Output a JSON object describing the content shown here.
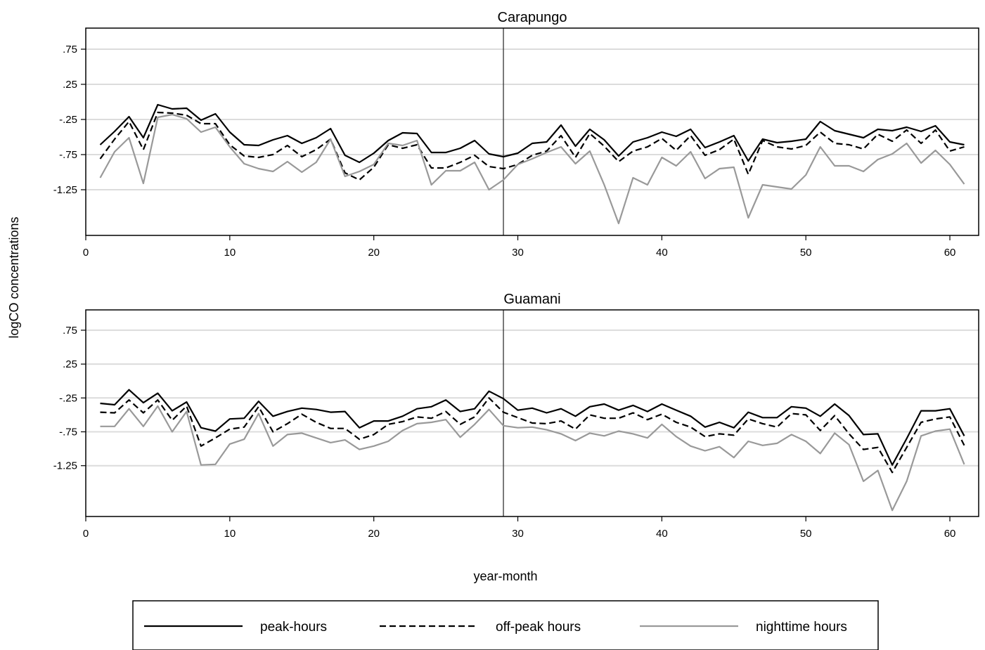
{
  "figure": {
    "ylabel": "logCO concentrations",
    "xlabel": "year-month"
  },
  "legend": {
    "position": "bottom",
    "items": [
      {
        "label": "peak-hours",
        "color": "#000000",
        "dash": "solid"
      },
      {
        "label": "off-peak hours",
        "color": "#000000",
        "dash": "dashed"
      },
      {
        "label": "nighttime hours",
        "color": "#999999",
        "dash": "solid"
      }
    ]
  },
  "chart_data": [
    {
      "type": "line",
      "title": "Carapungo",
      "xlim": [
        0,
        62
      ],
      "ylim": [
        -1.9,
        1.05
      ],
      "xticks": [
        0,
        10,
        20,
        30,
        40,
        50,
        60
      ],
      "yticks": [
        0.75,
        0.25,
        -0.25,
        -0.75,
        -1.25
      ],
      "ytick_labels": [
        ".75",
        ".25",
        "-.25",
        "-.75",
        "-1.25"
      ],
      "gridlines_y": true,
      "vline_x": 29,
      "x": [
        1,
        2,
        3,
        4,
        5,
        6,
        7,
        8,
        9,
        10,
        11,
        12,
        13,
        14,
        15,
        16,
        17,
        18,
        19,
        20,
        21,
        22,
        23,
        24,
        25,
        26,
        27,
        28,
        29,
        30,
        31,
        32,
        33,
        34,
        35,
        36,
        37,
        38,
        39,
        40,
        41,
        42,
        43,
        44,
        45,
        46,
        47,
        48,
        49,
        50,
        51,
        52,
        53,
        54,
        55,
        56,
        57,
        58,
        59,
        60,
        61
      ],
      "series": [
        {
          "name": "peak-hours",
          "values": [
            -0.61,
            -0.42,
            -0.21,
            -0.51,
            -0.04,
            -0.1,
            -0.09,
            -0.26,
            -0.17,
            -0.43,
            -0.61,
            -0.62,
            -0.54,
            -0.48,
            -0.59,
            -0.51,
            -0.38,
            -0.76,
            -0.86,
            -0.73,
            -0.55,
            -0.44,
            -0.45,
            -0.72,
            -0.72,
            -0.66,
            -0.55,
            -0.74,
            -0.78,
            -0.73,
            -0.59,
            -0.57,
            -0.33,
            -0.63,
            -0.39,
            -0.54,
            -0.77,
            -0.57,
            -0.51,
            -0.43,
            -0.49,
            -0.39,
            -0.65,
            -0.57,
            -0.48,
            -0.84,
            -0.53,
            -0.58,
            -0.56,
            -0.53,
            -0.28,
            -0.41,
            -0.46,
            -0.51,
            -0.39,
            -0.41,
            -0.36,
            -0.42,
            -0.34,
            -0.57,
            -0.61
          ]
        },
        {
          "name": "off-peak hours",
          "values": [
            -0.81,
            -0.53,
            -0.28,
            -0.68,
            -0.15,
            -0.16,
            -0.19,
            -0.31,
            -0.31,
            -0.61,
            -0.77,
            -0.79,
            -0.75,
            -0.62,
            -0.78,
            -0.68,
            -0.53,
            -1.01,
            -1.11,
            -0.93,
            -0.61,
            -0.66,
            -0.61,
            -0.94,
            -0.94,
            -0.86,
            -0.76,
            -0.92,
            -0.95,
            -0.89,
            -0.76,
            -0.7,
            -0.48,
            -0.79,
            -0.45,
            -0.63,
            -0.85,
            -0.7,
            -0.64,
            -0.52,
            -0.69,
            -0.48,
            -0.76,
            -0.68,
            -0.53,
            -1.03,
            -0.55,
            -0.64,
            -0.67,
            -0.62,
            -0.43,
            -0.59,
            -0.61,
            -0.67,
            -0.46,
            -0.56,
            -0.4,
            -0.59,
            -0.4,
            -0.7,
            -0.64
          ]
        },
        {
          "name": "nighttime hours",
          "values": [
            -1.08,
            -0.71,
            -0.51,
            -1.16,
            -0.22,
            -0.18,
            -0.24,
            -0.43,
            -0.36,
            -0.64,
            -0.88,
            -0.95,
            -0.99,
            -0.85,
            -1.0,
            -0.86,
            -0.53,
            -1.06,
            -0.99,
            -0.89,
            -0.59,
            -0.62,
            -0.55,
            -1.18,
            -0.98,
            -0.98,
            -0.86,
            -1.25,
            -1.11,
            -0.89,
            -0.81,
            -0.72,
            -0.64,
            -0.88,
            -0.7,
            -1.18,
            -1.73,
            -1.08,
            -1.18,
            -0.79,
            -0.91,
            -0.71,
            -1.09,
            -0.95,
            -0.93,
            -1.65,
            -1.18,
            -1.21,
            -1.24,
            -1.04,
            -0.64,
            -0.91,
            -0.91,
            -0.99,
            -0.82,
            -0.74,
            -0.59,
            -0.87,
            -0.69,
            -0.89,
            -1.17
          ]
        }
      ]
    },
    {
      "type": "line",
      "title": "Guamani",
      "xlim": [
        0,
        62
      ],
      "ylim": [
        -2.0,
        1.05
      ],
      "xticks": [
        0,
        10,
        20,
        30,
        40,
        50,
        60
      ],
      "yticks": [
        0.75,
        0.25,
        -0.25,
        -0.75,
        -1.25
      ],
      "ytick_labels": [
        ".75",
        ".25",
        "-.25",
        "-.75",
        "-1.25"
      ],
      "gridlines_y": true,
      "vline_x": 29,
      "x": [
        1,
        2,
        3,
        4,
        5,
        6,
        7,
        8,
        9,
        10,
        11,
        12,
        13,
        14,
        15,
        16,
        17,
        18,
        19,
        20,
        21,
        22,
        23,
        24,
        25,
        26,
        27,
        28,
        29,
        30,
        31,
        32,
        33,
        34,
        35,
        36,
        37,
        38,
        39,
        40,
        41,
        42,
        43,
        44,
        45,
        46,
        47,
        48,
        49,
        50,
        51,
        52,
        53,
        54,
        55,
        56,
        57,
        58,
        59,
        60,
        61
      ],
      "series": [
        {
          "name": "peak-hours",
          "values": [
            -0.33,
            -0.35,
            -0.13,
            -0.32,
            -0.18,
            -0.44,
            -0.31,
            -0.69,
            -0.74,
            -0.56,
            -0.55,
            -0.3,
            -0.52,
            -0.45,
            -0.4,
            -0.42,
            -0.46,
            -0.45,
            -0.69,
            -0.59,
            -0.59,
            -0.52,
            -0.41,
            -0.38,
            -0.28,
            -0.45,
            -0.41,
            -0.15,
            -0.26,
            -0.43,
            -0.4,
            -0.47,
            -0.41,
            -0.52,
            -0.38,
            -0.34,
            -0.43,
            -0.36,
            -0.45,
            -0.34,
            -0.43,
            -0.52,
            -0.68,
            -0.61,
            -0.69,
            -0.46,
            -0.54,
            -0.54,
            -0.38,
            -0.4,
            -0.52,
            -0.34,
            -0.51,
            -0.79,
            -0.78,
            -1.24,
            -0.85,
            -0.44,
            -0.44,
            -0.41,
            -0.81
          ]
        },
        {
          "name": "off-peak hours",
          "values": [
            -0.46,
            -0.47,
            -0.28,
            -0.47,
            -0.28,
            -0.58,
            -0.37,
            -0.96,
            -0.84,
            -0.71,
            -0.68,
            -0.38,
            -0.75,
            -0.63,
            -0.49,
            -0.61,
            -0.7,
            -0.7,
            -0.86,
            -0.79,
            -0.64,
            -0.6,
            -0.53,
            -0.55,
            -0.45,
            -0.64,
            -0.53,
            -0.25,
            -0.46,
            -0.54,
            -0.62,
            -0.63,
            -0.59,
            -0.71,
            -0.5,
            -0.55,
            -0.55,
            -0.47,
            -0.57,
            -0.49,
            -0.61,
            -0.68,
            -0.82,
            -0.78,
            -0.8,
            -0.56,
            -0.63,
            -0.68,
            -0.48,
            -0.5,
            -0.73,
            -0.51,
            -0.78,
            -1.01,
            -0.98,
            -1.35,
            -0.98,
            -0.61,
            -0.56,
            -0.53,
            -0.95
          ]
        },
        {
          "name": "nighttime hours",
          "values": [
            -0.67,
            -0.67,
            -0.41,
            -0.67,
            -0.37,
            -0.75,
            -0.45,
            -1.24,
            -1.23,
            -0.93,
            -0.86,
            -0.48,
            -0.96,
            -0.79,
            -0.77,
            -0.84,
            -0.91,
            -0.87,
            -1.01,
            -0.96,
            -0.89,
            -0.73,
            -0.63,
            -0.61,
            -0.57,
            -0.83,
            -0.64,
            -0.42,
            -0.66,
            -0.69,
            -0.68,
            -0.72,
            -0.78,
            -0.88,
            -0.77,
            -0.81,
            -0.74,
            -0.78,
            -0.84,
            -0.64,
            -0.82,
            -0.96,
            -1.03,
            -0.97,
            -1.13,
            -0.89,
            -0.95,
            -0.92,
            -0.79,
            -0.89,
            -1.07,
            -0.77,
            -0.94,
            -1.48,
            -1.32,
            -1.91,
            -1.48,
            -0.81,
            -0.74,
            -0.71,
            -1.23
          ]
        }
      ]
    }
  ]
}
